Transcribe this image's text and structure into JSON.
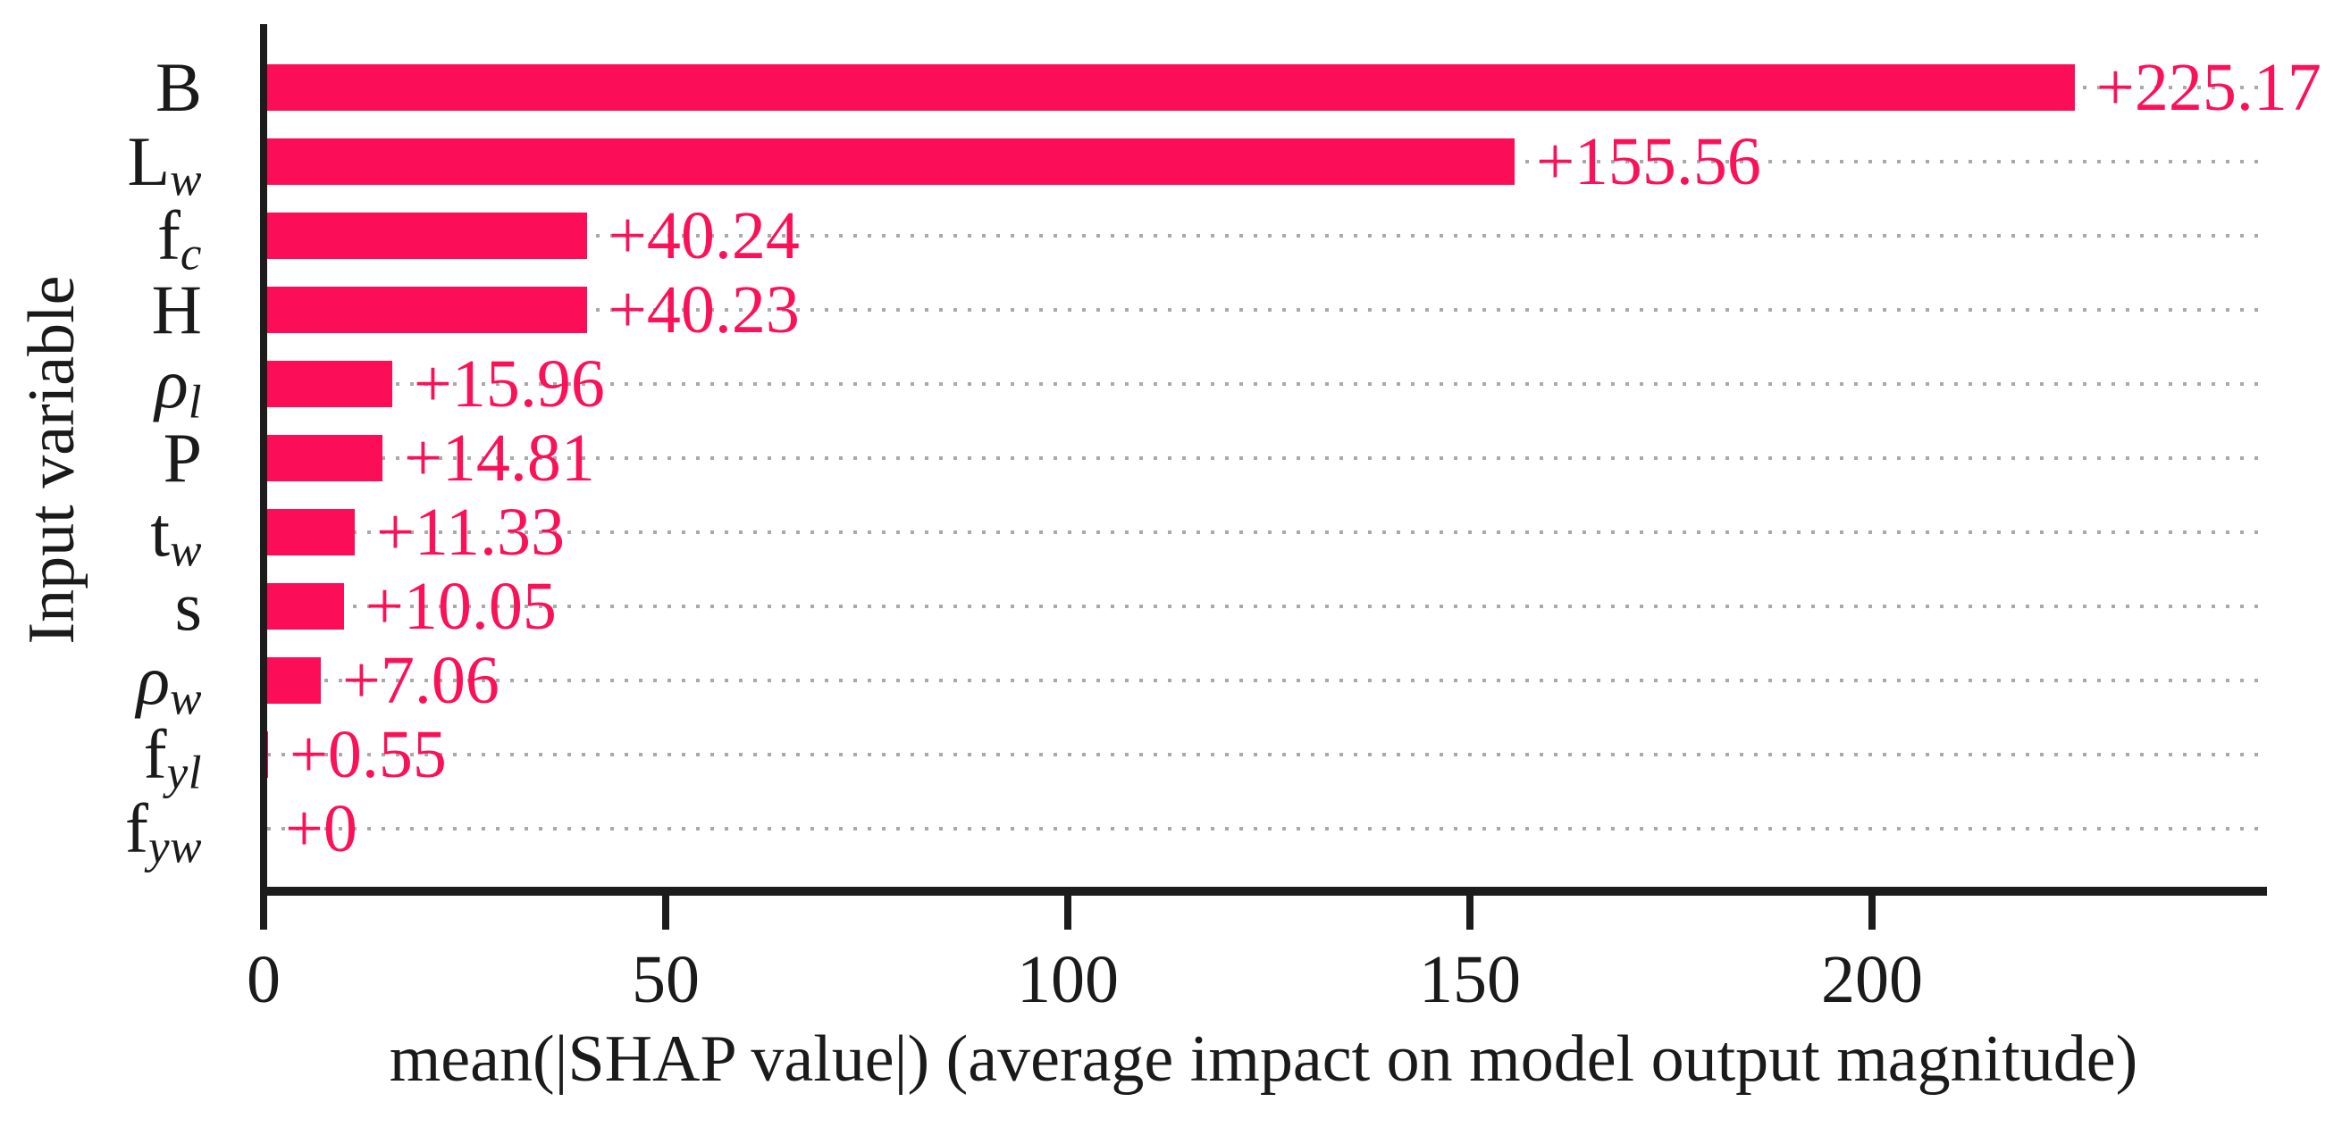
{
  "chart_data": {
    "type": "bar",
    "orientation": "horizontal",
    "title": "",
    "xlabel": "mean(|SHAP value|) (average impact on model output magnitude)",
    "ylabel": "Input variable",
    "xlim": [
      0,
      250
    ],
    "xticks": [
      0,
      50,
      100,
      150,
      200
    ],
    "xtick_labels": [
      "0",
      "50",
      "100",
      "150",
      "200"
    ],
    "grid": "dotted horizontal line per category row",
    "legend": "none",
    "categories": [
      {
        "main": "B",
        "main_italic": false,
        "sub": ""
      },
      {
        "main": "L",
        "main_italic": false,
        "sub": "w"
      },
      {
        "main": "f",
        "main_italic": false,
        "sub": "c"
      },
      {
        "main": "H",
        "main_italic": false,
        "sub": ""
      },
      {
        "main": "ρ",
        "main_italic": true,
        "sub": "l"
      },
      {
        "main": "P",
        "main_italic": false,
        "sub": ""
      },
      {
        "main": "t",
        "main_italic": false,
        "sub": "w"
      },
      {
        "main": "s",
        "main_italic": false,
        "sub": ""
      },
      {
        "main": "ρ",
        "main_italic": true,
        "sub": "w"
      },
      {
        "main": "f",
        "main_italic": false,
        "sub": "yl"
      },
      {
        "main": "f",
        "main_italic": false,
        "sub": "yw"
      }
    ],
    "values": [
      225.17,
      155.56,
      40.24,
      40.23,
      15.96,
      14.81,
      11.33,
      10.05,
      7.06,
      0.55,
      0
    ],
    "value_labels": [
      "+225.17",
      "+155.56",
      "+40.24",
      "+40.23",
      "+15.96",
      "+14.81",
      "+11.33",
      "+10.05",
      "+7.06",
      "+0.55",
      "+0"
    ],
    "colors": {
      "bar": "#fb0d57",
      "value_label": "#fa1158",
      "axis": "#1c1c1c",
      "tick_label": "#1a1a1a",
      "grid_dot": "#a9a9a9",
      "background": "#ffffff"
    }
  }
}
